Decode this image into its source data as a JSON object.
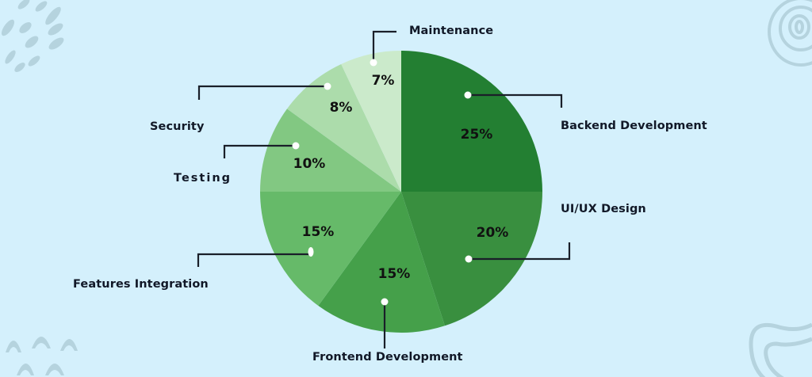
{
  "chart_data": {
    "type": "pie",
    "title": "",
    "center": [
      506,
      242
    ],
    "radius": 178,
    "start_angle_deg": 0,
    "direction": "clockwise-from-top",
    "slices": [
      {
        "label": "Backend Development",
        "value": 25,
        "display": "25%",
        "color": "#237f32"
      },
      {
        "label": "UI/UX Design",
        "value": 20,
        "display": "20%",
        "color": "#398f3f"
      },
      {
        "label": "Frontend Development",
        "value": 15,
        "display": "15%",
        "color": "#45a04a"
      },
      {
        "label": "Features Integration",
        "value": 15,
        "display": "15%",
        "color": "#66ba69"
      },
      {
        "label": "Testing",
        "value": 10,
        "display": "10%",
        "color": "#82c882"
      },
      {
        "label": "Security",
        "value": 8,
        "display": "8%",
        "color": "#acdcab"
      },
      {
        "label": "Maintenance",
        "value": 7,
        "display": "7%",
        "color": "#cbeacb"
      }
    ],
    "legend_position": "callouts",
    "grid": false
  },
  "labels": {
    "maintenance": "Maintenance",
    "backend": "Backend Development",
    "security": "Security",
    "testing": "Testing",
    "uiux": "UI/UX Design",
    "features": "Features Integration",
    "frontend": "Frontend Development"
  },
  "percentages": {
    "maintenance": "7%",
    "backend": "25%",
    "security": "8%",
    "testing": "10%",
    "uiux": "20%",
    "features": "15%",
    "frontend": "15%"
  },
  "theme": {
    "background": "#d4f0fc",
    "decoration": "#b5d3de",
    "callout_line": "#1a1f29",
    "dot": "#ffffff"
  }
}
